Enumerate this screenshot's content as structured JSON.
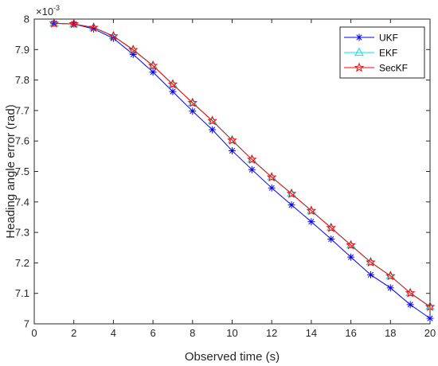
{
  "chart_data": {
    "type": "line",
    "xlabel": "Observed time (s)",
    "ylabel": "Heading angle error (rad)",
    "xlim": [
      0,
      20
    ],
    "ylim": [
      7.0,
      8.0
    ],
    "y_multiplier": "×10",
    "y_multiplier_exponent": "-3",
    "x_ticks": [
      "0",
      "2",
      "4",
      "6",
      "8",
      "10",
      "12",
      "14",
      "16",
      "18",
      "20"
    ],
    "y_ticks": [
      "7",
      "7.1",
      "7.2",
      "7.3",
      "7.4",
      "7.5",
      "7.6",
      "7.7",
      "7.8",
      "7.9",
      "8"
    ],
    "grid": false,
    "legend_position": "top-right",
    "x": [
      1,
      2,
      3,
      4,
      5,
      6,
      7,
      8,
      9,
      10,
      11,
      12,
      13,
      14,
      15,
      16,
      17,
      18,
      19,
      20
    ],
    "series": [
      {
        "name": "UKF",
        "color": "#0000ff",
        "marker": "asterisk",
        "values": [
          7.986,
          7.984,
          7.968,
          7.937,
          7.884,
          7.826,
          7.762,
          7.698,
          7.637,
          7.568,
          7.506,
          7.446,
          7.39,
          7.335,
          7.278,
          7.219,
          7.161,
          7.118,
          7.063,
          7.018
        ]
      },
      {
        "name": "EKF",
        "color": "#00e5e5",
        "marker": "triangle",
        "values": [
          7.986,
          7.984,
          7.973,
          7.945,
          7.9,
          7.848,
          7.787,
          7.726,
          7.667,
          7.603,
          7.54,
          7.482,
          7.428,
          7.372,
          7.316,
          7.259,
          7.203,
          7.158,
          7.102,
          7.057
        ]
      },
      {
        "name": "SecKF",
        "color": "#ff0000",
        "marker": "star",
        "values": [
          7.986,
          7.984,
          7.972,
          7.944,
          7.899,
          7.847,
          7.786,
          7.725,
          7.666,
          7.602,
          7.539,
          7.481,
          7.427,
          7.371,
          7.315,
          7.258,
          7.202,
          7.157,
          7.101,
          7.056
        ]
      }
    ]
  }
}
